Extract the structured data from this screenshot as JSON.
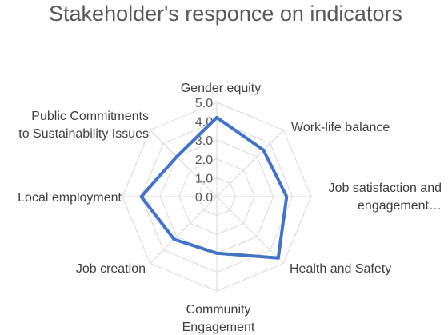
{
  "chart_data": {
    "type": "radar",
    "title": "Stakeholder's responce on indicators",
    "categories": [
      [
        "Gender equity"
      ],
      [
        "Work-life balance"
      ],
      [
        "Job satisfaction and",
        "engagement…"
      ],
      [
        "Health and Safety"
      ],
      [
        "Community",
        "Engagement"
      ],
      [
        "Job creation"
      ],
      [
        "Local employment"
      ],
      [
        "Public Commitments",
        "to Sustainability Issues"
      ]
    ],
    "series": [
      {
        "values": [
          4.2,
          3.5,
          3.7,
          4.6,
          3.0,
          3.2,
          4.0,
          3.0
        ]
      }
    ],
    "rlim": [
      0,
      5
    ],
    "ticks": [
      "0.0",
      "1.0",
      "2.0",
      "3.0",
      "4.0",
      "5.0"
    ],
    "grid": true,
    "legend": "none",
    "colors": {
      "series": "#4472c4",
      "grid": "#d9d9d9"
    }
  }
}
